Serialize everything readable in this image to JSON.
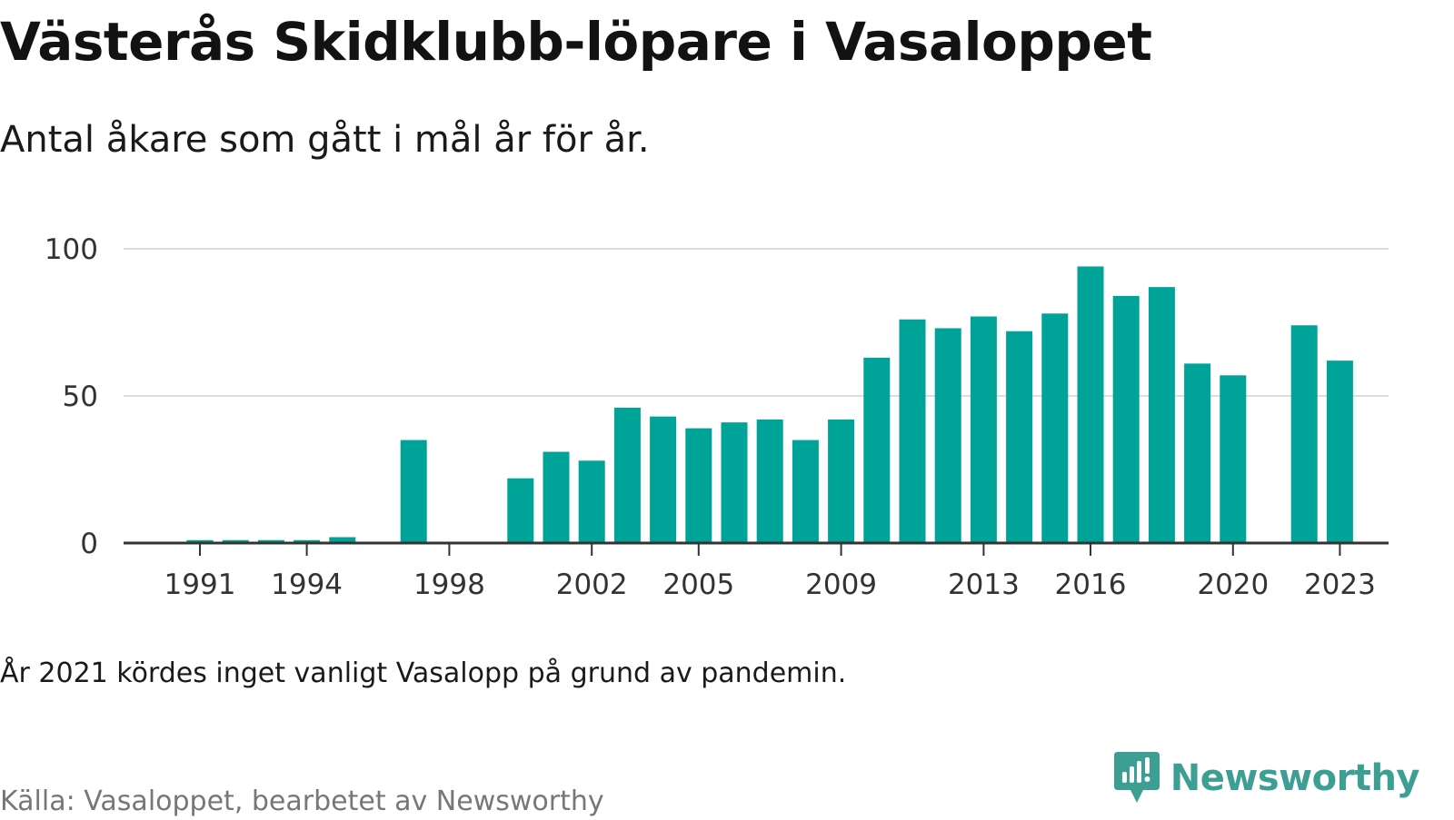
{
  "header": {
    "title": "Västerås Skidklubb-löpare i Vasaloppet",
    "subtitle": "Antal åkare som gått i mål år för år."
  },
  "footer": {
    "note": "År 2021 kördes inget vanligt Vasalopp på grund av pandemin.",
    "source": "Källa: Vasaloppet, bearbetet av Newsworthy",
    "brand_name": "Newsworthy",
    "brand_icon": "newsworthy-logo-icon"
  },
  "colors": {
    "bar": "#00a398",
    "gridline": "#dddddd",
    "axis": "#333333",
    "brand": "#3d9e94"
  },
  "chart_data": {
    "type": "bar",
    "x": [
      1991,
      1992,
      1993,
      1994,
      1995,
      1996,
      1997,
      1998,
      1999,
      2000,
      2001,
      2002,
      2003,
      2004,
      2005,
      2006,
      2007,
      2008,
      2009,
      2010,
      2011,
      2012,
      2013,
      2014,
      2015,
      2016,
      2017,
      2018,
      2019,
      2020,
      2021,
      2022,
      2023
    ],
    "values": [
      1,
      1,
      1,
      1,
      2,
      0,
      35,
      0,
      0,
      22,
      31,
      28,
      46,
      43,
      39,
      41,
      42,
      35,
      42,
      63,
      76,
      73,
      77,
      72,
      78,
      94,
      84,
      87,
      61,
      57,
      null,
      74,
      62
    ],
    "x_tick_labels": [
      "1991",
      "1994",
      "1998",
      "2002",
      "2005",
      "2009",
      "2013",
      "2016",
      "2020",
      "2023"
    ],
    "y_ticks": [
      0,
      50,
      100
    ],
    "ylim": [
      0,
      100
    ],
    "grid": true,
    "xlabel": "",
    "ylabel": ""
  }
}
